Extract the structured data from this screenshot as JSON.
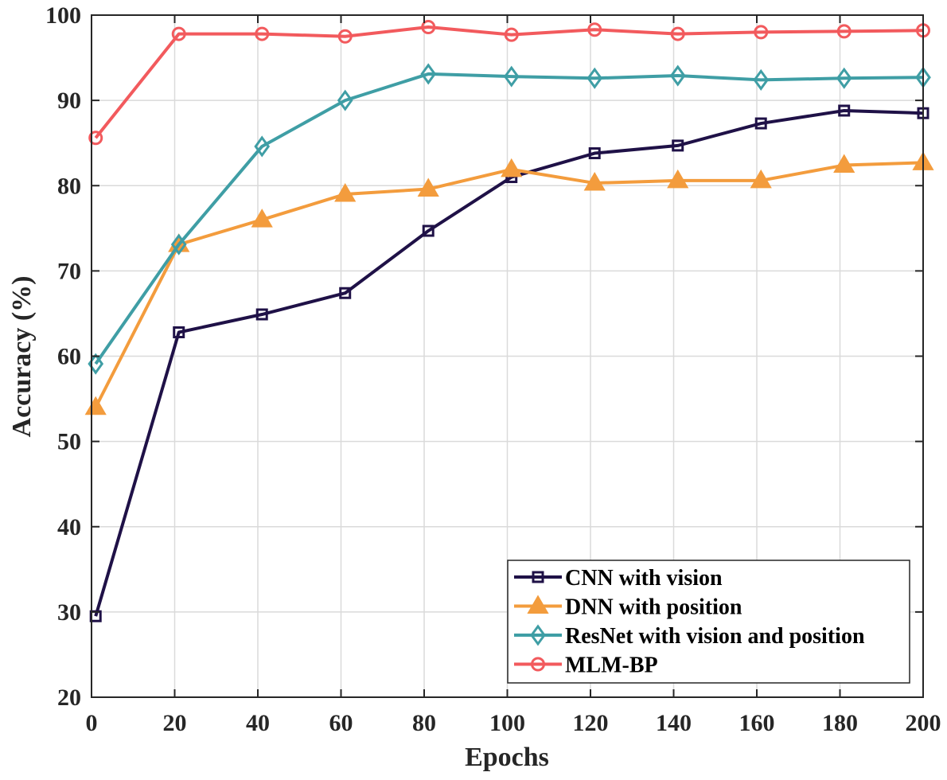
{
  "chart_data": {
    "type": "line",
    "title": "",
    "xlabel": "Epochs",
    "ylabel": "Accuracy (%)",
    "xlim": [
      0,
      200
    ],
    "ylim": [
      20,
      100
    ],
    "xticks": [
      0,
      20,
      40,
      60,
      80,
      100,
      120,
      140,
      160,
      180,
      200
    ],
    "yticks": [
      20,
      30,
      40,
      50,
      60,
      70,
      80,
      90,
      100
    ],
    "grid": true,
    "legend_position": "bottom-right",
    "series": [
      {
        "name": "CNN with vision",
        "color": "#1f1147",
        "marker": "square",
        "x": [
          1,
          21,
          41,
          61,
          81,
          101,
          121,
          141,
          161,
          181,
          200
        ],
        "values": [
          29.5,
          62.8,
          64.9,
          67.4,
          74.7,
          81.0,
          83.8,
          84.7,
          87.3,
          88.8,
          88.5
        ]
      },
      {
        "name": "DNN with position",
        "color": "#f39c3d",
        "marker": "triangle",
        "x": [
          1,
          21,
          41,
          61,
          81,
          101,
          121,
          141,
          161,
          181,
          200
        ],
        "values": [
          54.0,
          73.1,
          76.0,
          79.0,
          79.6,
          81.9,
          80.3,
          80.6,
          80.6,
          82.4,
          82.7
        ]
      },
      {
        "name": "ResNet with vision and position",
        "color": "#3f9ea5",
        "marker": "diamond",
        "x": [
          1,
          21,
          41,
          61,
          81,
          101,
          121,
          141,
          161,
          181,
          200
        ],
        "values": [
          59.1,
          73.1,
          84.6,
          90.0,
          93.1,
          92.8,
          92.6,
          92.9,
          92.4,
          92.6,
          92.7
        ]
      },
      {
        "name": "MLM-BP",
        "color": "#f25a5d",
        "marker": "circle",
        "x": [
          1,
          21,
          41,
          61,
          81,
          101,
          121,
          141,
          161,
          181,
          200
        ],
        "values": [
          85.6,
          97.8,
          97.8,
          97.5,
          98.6,
          97.7,
          98.3,
          97.8,
          98.0,
          98.1,
          98.2
        ]
      }
    ]
  }
}
